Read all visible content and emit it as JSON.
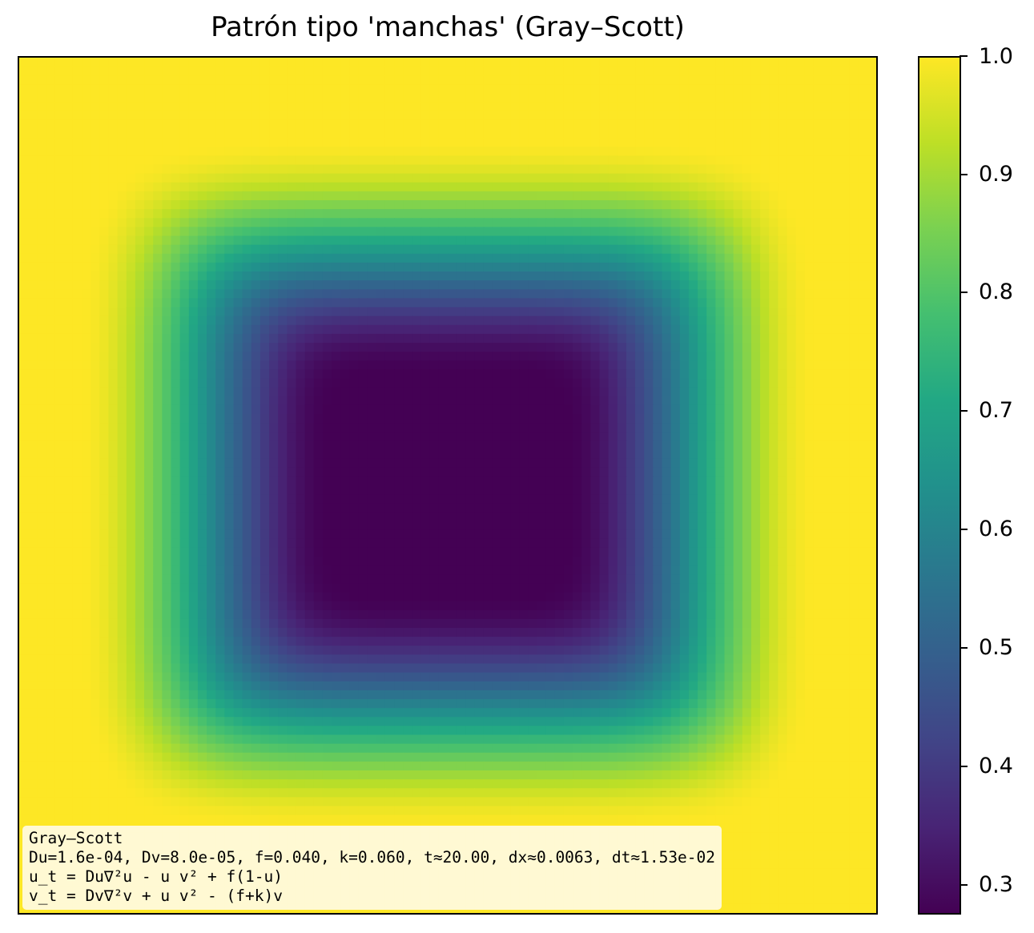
{
  "chart_data": {
    "type": "heatmap",
    "title": "Patrón tipo 'manchas' (Gray–Scott)",
    "xlabel": "",
    "ylabel": "",
    "colormap": "viridis",
    "colorbar": {
      "vmin": 0.27,
      "vmax": 1.0,
      "ticks": [
        "1.0",
        "0.9",
        "0.8",
        "0.7",
        "0.6",
        "0.5",
        "0.4",
        "0.3"
      ]
    },
    "field": {
      "background_value": 1.0,
      "min_value": 0.27,
      "shape": "rounded-square spot",
      "center": [
        0.5,
        0.5
      ],
      "core_half_width": 0.18
    },
    "annotation": [
      "Gray–Scott",
      "Du=1.6e-04, Dv=8.0e-05, f=0.040, k=0.060, t≈20.00, dx≈0.0063, dt≈1.53e-02",
      "u_t = Du∇²u - u v² + f(1-u)",
      "v_t = Dv∇²v + u v² - (f+k)v"
    ],
    "grid": false
  }
}
